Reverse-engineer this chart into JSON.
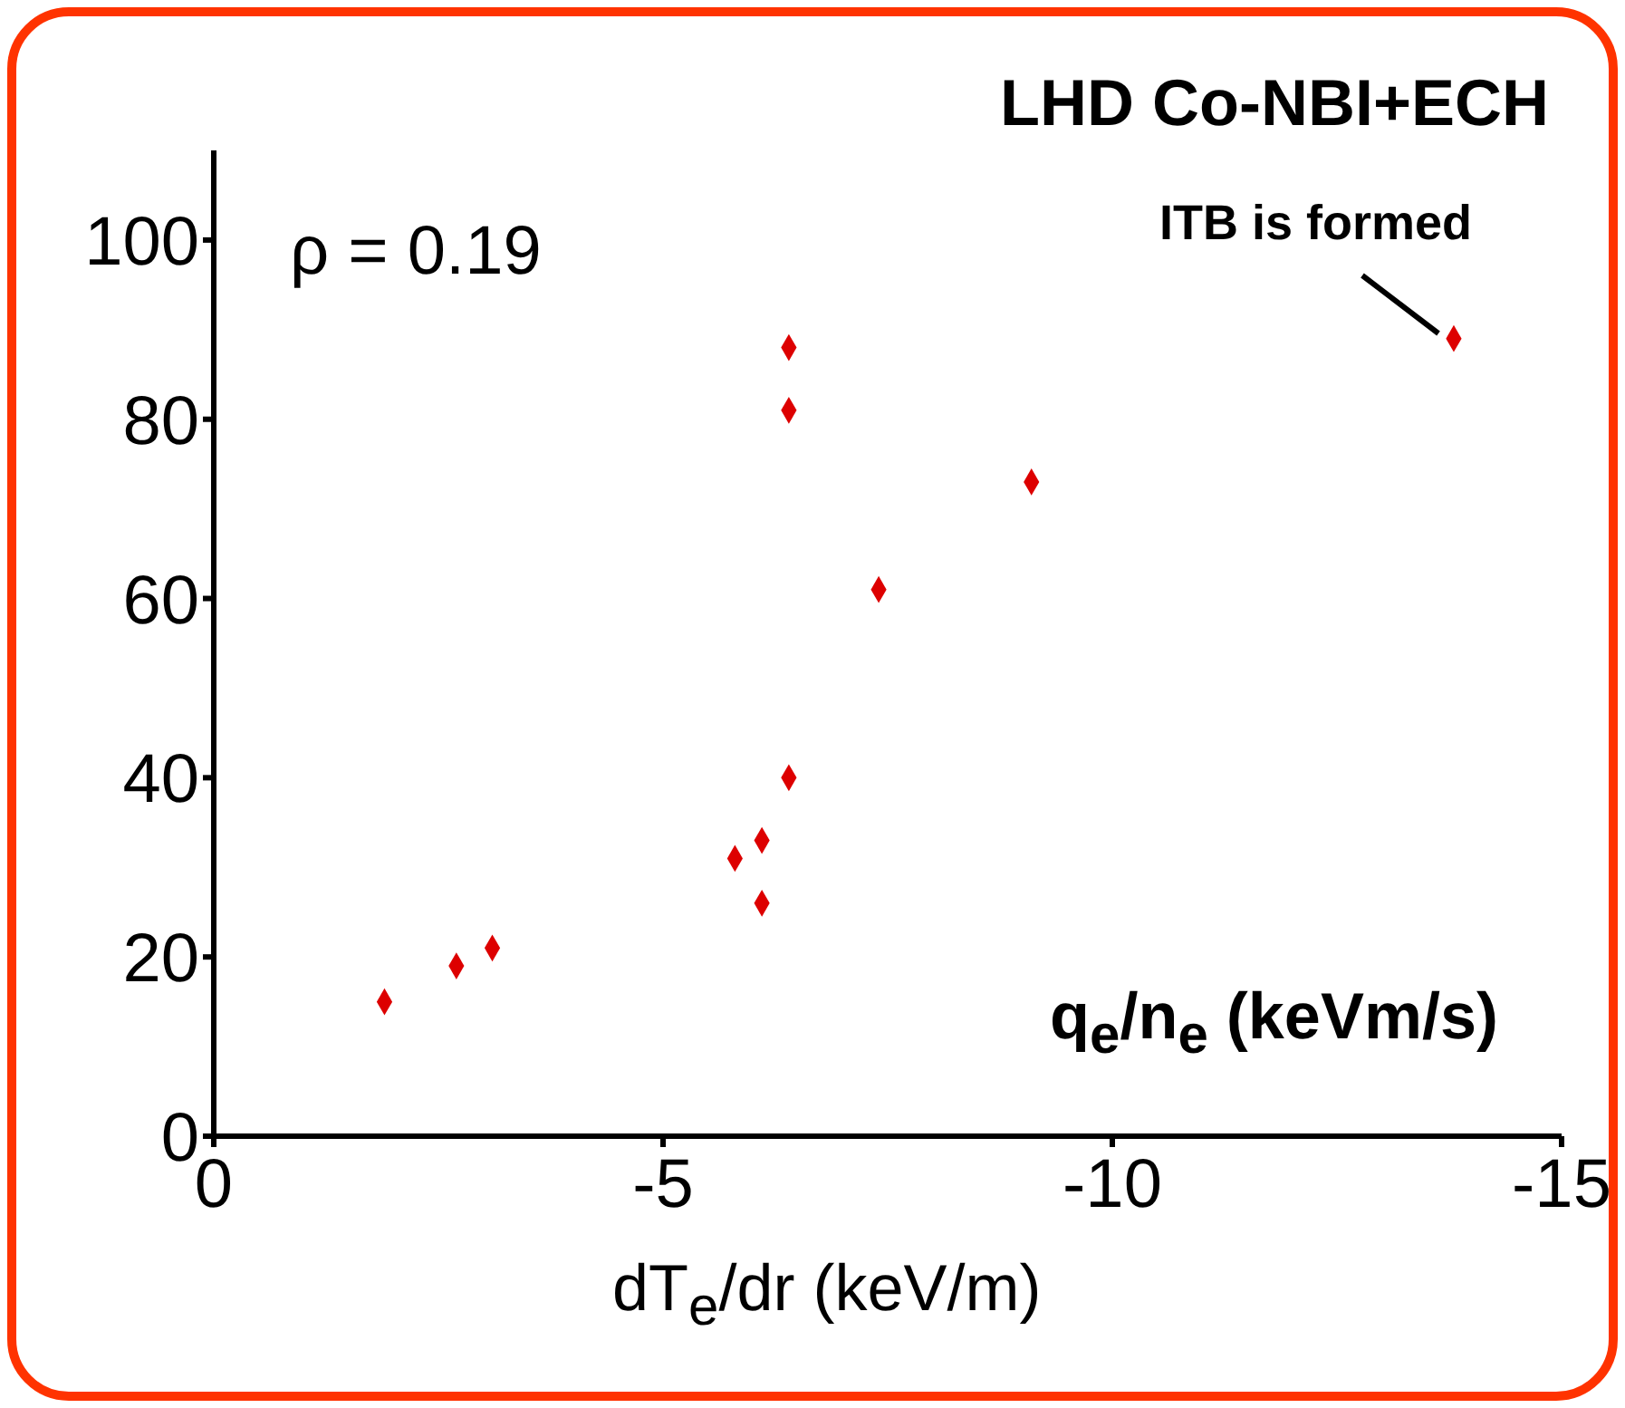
{
  "chart_data": {
    "type": "scatter",
    "title": "LHD Co-NBI+ECH",
    "xlabel": "dT$_{e}$/dr (keV/m)",
    "ylabel": "q$_{e}$/n$_{e}$ (keVm/s)",
    "annotations": [
      "ρ = 0.19",
      "ITB is formed"
    ],
    "x": [
      -1.9,
      -2.7,
      -3.1,
      -5.8,
      -6.1,
      -6.1,
      -6.4,
      -6.4,
      -6.4,
      -7.4,
      -9.1,
      -13.8
    ],
    "values": [
      15,
      19,
      21,
      31,
      33,
      26,
      40,
      81,
      88,
      61,
      73,
      89
    ],
    "color": "#dd0000",
    "marker": "diamond",
    "grid": false,
    "legend": false,
    "xlim": [
      0,
      -15
    ],
    "xticks": [
      0,
      -5,
      -10,
      -15
    ],
    "ylim": [
      0,
      110
    ],
    "yticks": [
      0,
      20,
      40,
      60,
      80,
      100
    ]
  }
}
